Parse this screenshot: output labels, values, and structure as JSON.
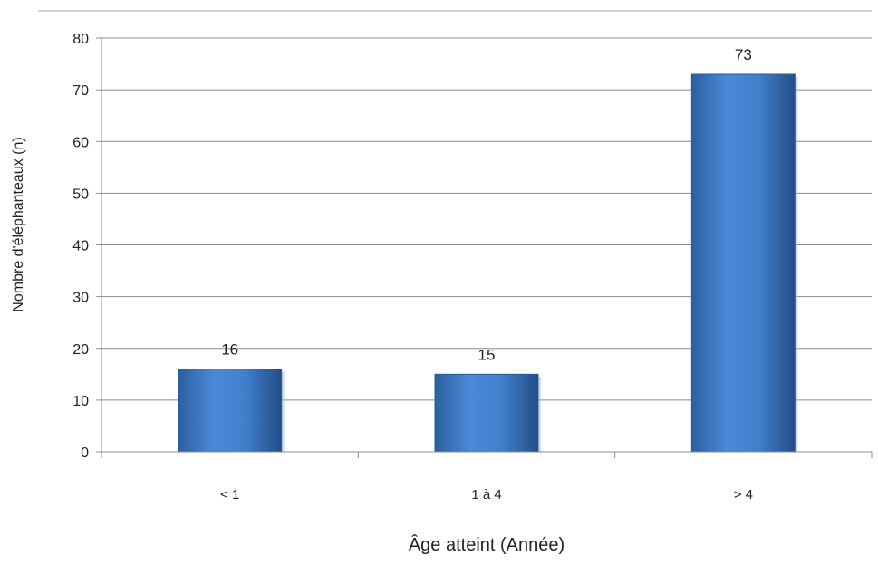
{
  "chart_data": {
    "type": "bar",
    "categories": [
      "< 1",
      "1 à 4",
      "> 4"
    ],
    "values": [
      16,
      15,
      73
    ],
    "data_labels": [
      "16",
      "15",
      "73"
    ],
    "ylim": [
      0,
      80
    ],
    "yticks": [
      0,
      10,
      20,
      30,
      40,
      50,
      60,
      70,
      80
    ],
    "xlabel": "Âge atteint (Année)",
    "ylabel": "Nombre d'éléphanteaux (n)",
    "grid": true,
    "bar_color": "#3d7cc9"
  }
}
